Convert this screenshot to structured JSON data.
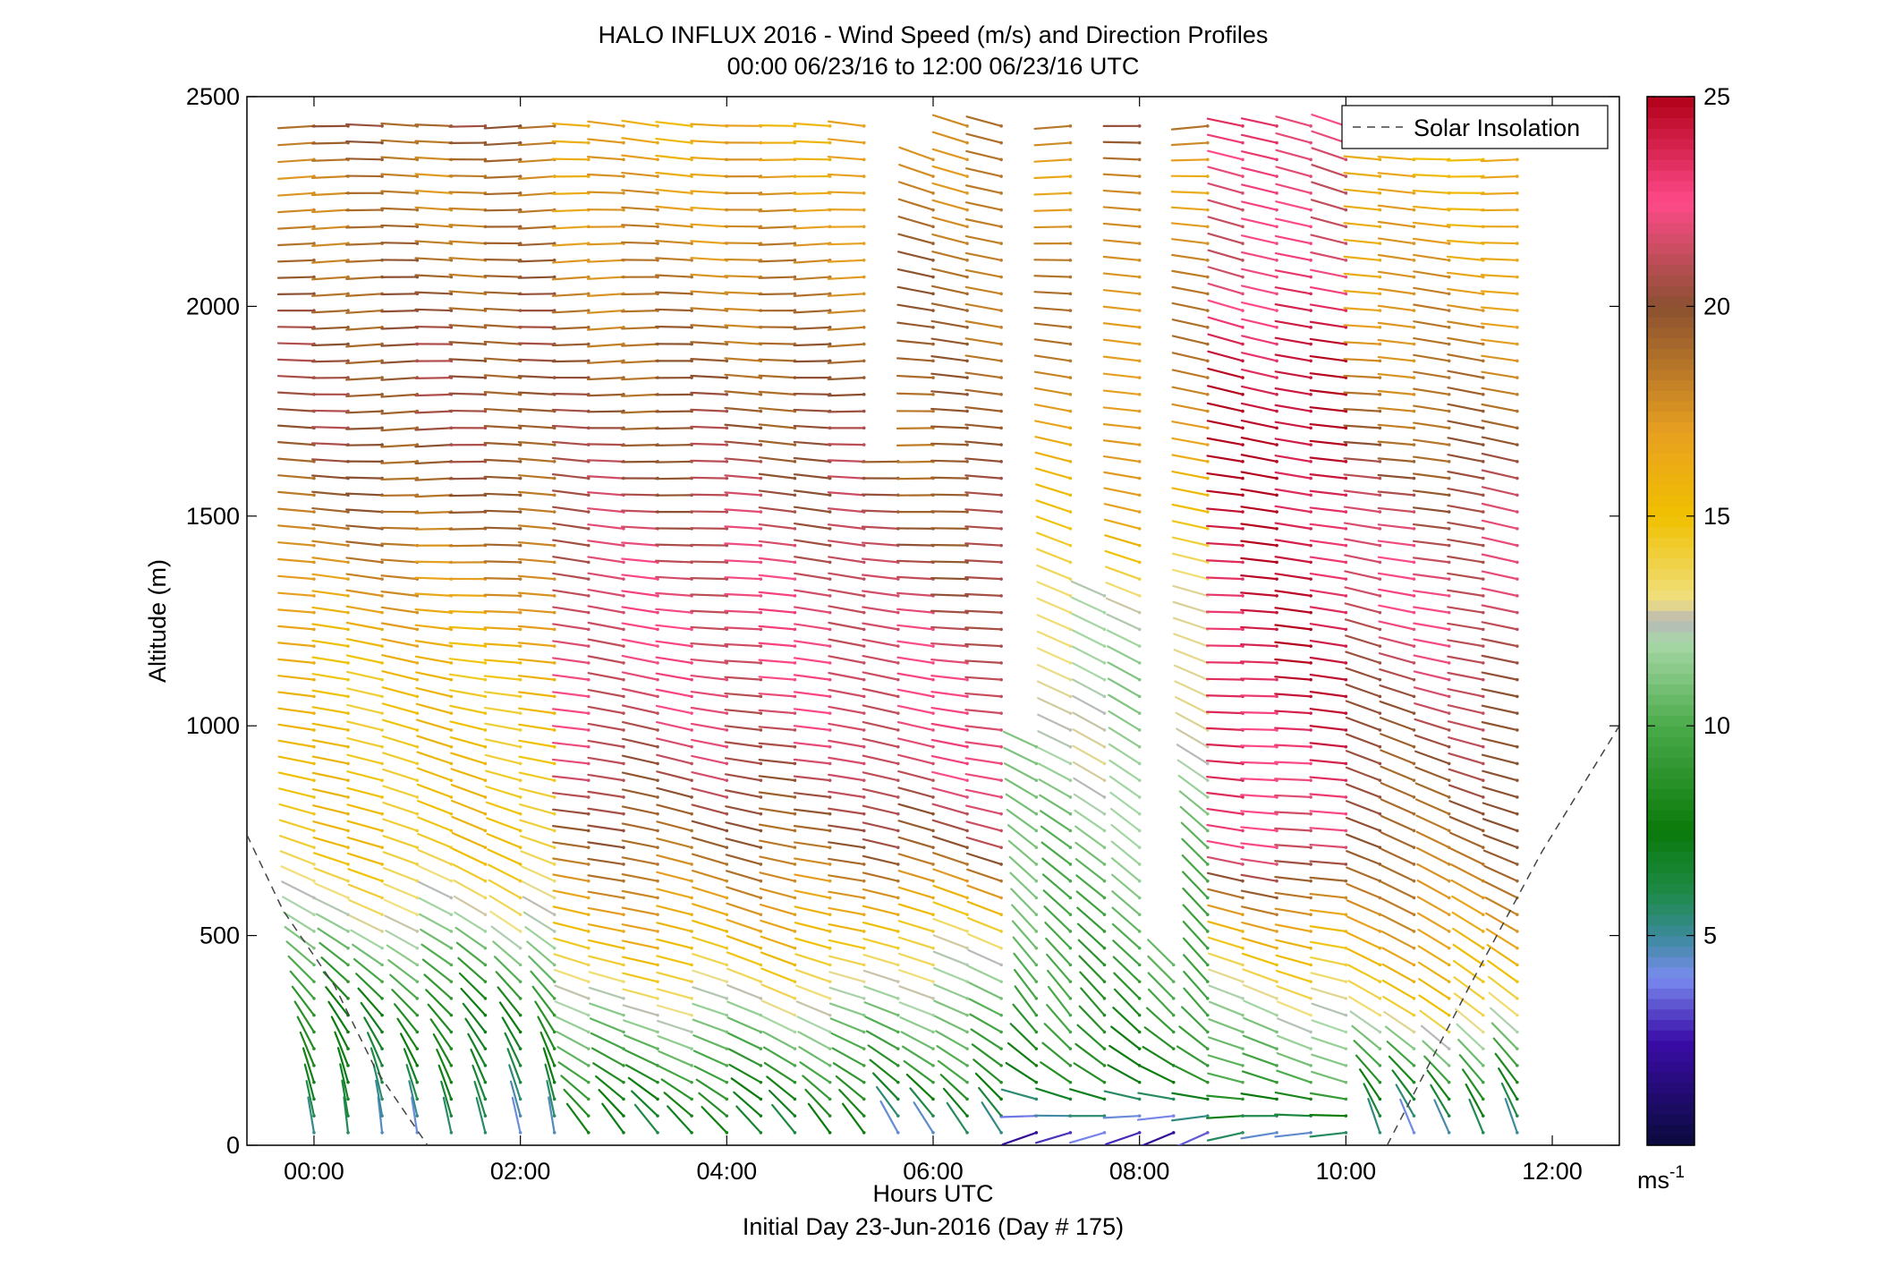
{
  "chart_data": {
    "type": "wind-barb-profile",
    "title": "HALO INFLUX 2016 - Wind Speed (m/s) and Direction Profiles",
    "subtitle": "00:00 06/23/16 to 12:00 06/23/16  UTC",
    "xlabel": "Hours UTC",
    "xlabel2": "Initial Day 23-Jun-2016 (Day # 175)",
    "ylabel": "Altitude (m)",
    "xlim": [
      -0.65,
      12.65
    ],
    "ylim": [
      0,
      2500
    ],
    "x_ticks": [
      0,
      2,
      4,
      6,
      8,
      10,
      12
    ],
    "x_tick_labels": [
      "00:00",
      "02:00",
      "04:00",
      "06:00",
      "08:00",
      "10:00",
      "12:00"
    ],
    "y_ticks": [
      0,
      500,
      1000,
      1500,
      2000,
      2500
    ],
    "y_tick_labels": [
      "0",
      "500",
      "1000",
      "1500",
      "2000",
      "2500"
    ],
    "colorbar": {
      "range": [
        0,
        25
      ],
      "ticks": [
        5,
        10,
        15,
        20,
        25
      ],
      "tick_labels": [
        "5",
        "10",
        "15",
        "20",
        "25"
      ],
      "unit_base": "ms",
      "unit_exp": "-1",
      "colors": [
        {
          "v": 0,
          "c": "#0a0a3a"
        },
        {
          "v": 2.5,
          "c": "#3a0ca8"
        },
        {
          "v": 4,
          "c": "#7a8cf0"
        },
        {
          "v": 5,
          "c": "#3a8a9a"
        },
        {
          "v": 6,
          "c": "#1f8a4a"
        },
        {
          "v": 7.5,
          "c": "#0a7a0a"
        },
        {
          "v": 10,
          "c": "#4aaa4a"
        },
        {
          "v": 12,
          "c": "#a8d8a8"
        },
        {
          "v": 12.5,
          "c": "#b8b8b8"
        },
        {
          "v": 13,
          "c": "#f0e080"
        },
        {
          "v": 15,
          "c": "#f0c000"
        },
        {
          "v": 17,
          "c": "#e8a020"
        },
        {
          "v": 20,
          "c": "#8a5030"
        },
        {
          "v": 22.5,
          "c": "#ff4a8a"
        },
        {
          "v": 25,
          "c": "#b00018"
        }
      ]
    },
    "legend": {
      "entries": [
        "Solar Insolation"
      ],
      "position": "top-right",
      "line_style": "dashed",
      "color": "#444444"
    },
    "solar_insolation": [
      {
        "x": -0.65,
        "y": 740
      },
      {
        "x": -0.3,
        "y": 560
      },
      {
        "x": 0.2,
        "y": 380
      },
      {
        "x": 0.6,
        "y": 180
      },
      {
        "x": 1.1,
        "y": 0
      }
    ],
    "solar_insolation_2": [
      {
        "x": 10.4,
        "y": 0
      },
      {
        "x": 11.2,
        "y": 380
      },
      {
        "x": 11.9,
        "y": 700
      },
      {
        "x": 12.65,
        "y": 1000
      }
    ],
    "profiles_x": [
      0,
      0.33,
      0.66,
      1.0,
      1.33,
      1.66,
      2.0,
      2.33,
      2.66,
      3.0,
      3.33,
      3.66,
      4.0,
      4.33,
      4.66,
      5.0,
      5.33,
      5.66,
      6.0,
      6.33,
      6.66,
      7.0,
      7.33,
      7.66,
      8.0,
      8.33,
      8.66,
      9.0,
      9.33,
      9.66,
      10.0,
      10.33,
      10.66,
      11.0,
      11.33,
      11.66
    ],
    "profile_top_alt": [
      2460,
      2460,
      2460,
      2460,
      2460,
      2460,
      2460,
      2460,
      2460,
      2460,
      2460,
      2460,
      2460,
      2460,
      2460,
      2460,
      2460,
      1660,
      2360,
      2460,
      2460,
      960,
      2460,
      1330,
      2460,
      460,
      2460,
      2460,
      2460,
      2460,
      2460,
      2460,
      2460,
      2460,
      2460,
      2360
    ],
    "speed_anchor_alts": [
      30,
      150,
      300,
      500,
      700,
      900,
      1100,
      1300,
      1500,
      1700,
      1900,
      2100,
      2300,
      2460
    ],
    "speed_by_group": {
      "early": [
        5,
        7,
        8,
        12,
        15,
        15,
        15,
        17,
        19,
        20,
        20,
        19,
        18,
        20
      ],
      "mid": [
        7,
        9,
        12,
        16,
        19,
        21,
        22,
        22,
        21,
        20,
        19,
        18,
        17,
        16
      ],
      "late6": [
        5,
        9,
        11,
        14,
        20,
        22,
        22,
        21,
        20,
        19,
        19,
        19,
        18,
        18
      ],
      "dip7": [
        3,
        8,
        9,
        10,
        11,
        12,
        12,
        13,
        16,
        17,
        18,
        18,
        17,
        20
      ],
      "post8": [
        5,
        10,
        12,
        16,
        22,
        23,
        24,
        24,
        24,
        25,
        24,
        22,
        22,
        23
      ],
      "end": [
        5,
        9,
        14,
        17,
        19,
        20,
        21,
        22,
        21,
        19,
        18,
        17,
        16,
        15
      ]
    },
    "direction_by_group": {
      "early": [
        350,
        340,
        320,
        300,
        290,
        285,
        280,
        275,
        272,
        270,
        270,
        270,
        270,
        270
      ],
      "mid": [
        320,
        300,
        290,
        285,
        282,
        280,
        278,
        276,
        274,
        272,
        270,
        270,
        272,
        275
      ],
      "late6": [
        330,
        310,
        295,
        288,
        284,
        280,
        278,
        276,
        274,
        272,
        275,
        280,
        285,
        290
      ],
      "dip7": [
        250,
        300,
        320,
        315,
        310,
        300,
        295,
        290,
        285,
        280,
        280,
        275,
        270,
        265
      ],
      "post8": [
        260,
        285,
        290,
        282,
        278,
        276,
        275,
        275,
        275,
        278,
        282,
        285,
        288,
        285
      ],
      "end": [
        340,
        320,
        305,
        298,
        292,
        288,
        285,
        282,
        280,
        278,
        276,
        275,
        272,
        270
      ]
    }
  }
}
